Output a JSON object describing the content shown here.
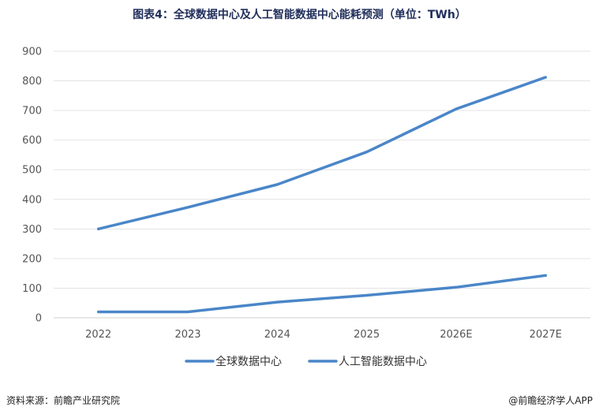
{
  "title": "图表4：全球数据中心及人工智能数据中心能耗预测（单位：TWh）",
  "footer": {
    "source": "资料来源：前瞻产业研究院",
    "brand": "@前瞻经济学人APP"
  },
  "colors": {
    "series": "#4a86c8",
    "grid": "#e3e3e3",
    "axis": "#cfcfcf"
  },
  "chart_data": {
    "type": "line",
    "title": "图表4：全球数据中心及人工智能数据中心能耗预测（单位：TWh）",
    "xlabel": "",
    "ylabel": "",
    "categories": [
      "2022",
      "2023",
      "2024",
      "2025",
      "2026E",
      "2027E"
    ],
    "ylim": [
      0,
      900
    ],
    "yticks": [
      0,
      100,
      200,
      300,
      400,
      500,
      600,
      700,
      800,
      900
    ],
    "grid": true,
    "legend_position": "bottom",
    "series": [
      {
        "name": "全球数据中心",
        "values": [
          300,
          373,
          450,
          560,
          705,
          812
        ]
      },
      {
        "name": "人工智能数据中心",
        "values": [
          20,
          20,
          53,
          76,
          103,
          143
        ]
      }
    ]
  }
}
